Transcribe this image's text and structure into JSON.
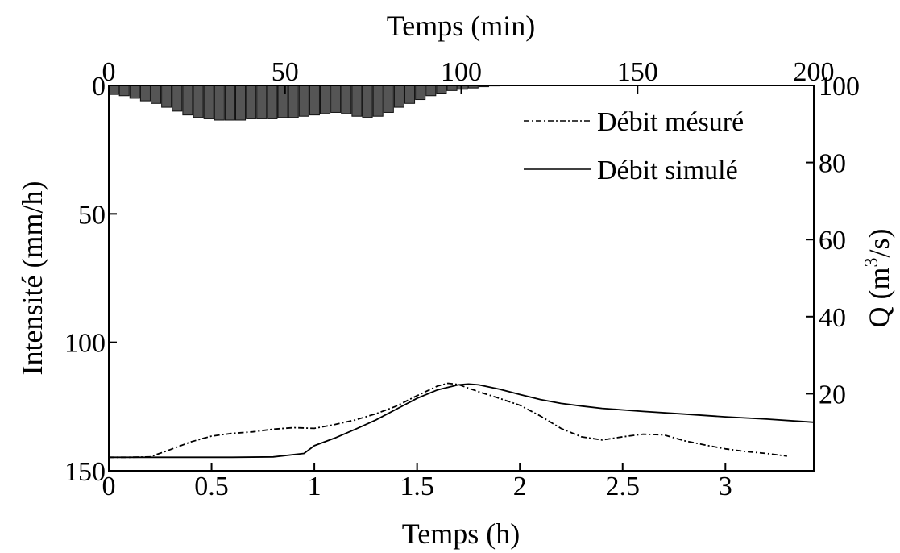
{
  "chart_data": {
    "type": "line",
    "title": "",
    "top_axis": {
      "label": "Temps (min)",
      "ticks": [
        "0",
        "50",
        "100",
        "150",
        "200"
      ],
      "tick_values": [
        0,
        50,
        100,
        150,
        200
      ],
      "range": [
        0,
        200
      ]
    },
    "bottom_axis": {
      "label": "Temps (h)",
      "ticks": [
        "0",
        "0.5",
        "1",
        "1.5",
        "2",
        "2.5",
        "3"
      ],
      "tick_values": [
        0,
        0.5,
        1,
        1.5,
        2,
        2.5,
        3
      ],
      "range": [
        0,
        3.43
      ]
    },
    "left_axis": {
      "label": "Intensité (mm/h)",
      "ticks": [
        "0",
        "50",
        "100",
        "150"
      ],
      "tick_values": [
        0,
        50,
        100,
        150
      ],
      "range": [
        0,
        150
      ],
      "inverted": true
    },
    "right_axis": {
      "label_prefix": "Q (m",
      "label_sup": "3",
      "label_suffix": "/s)",
      "ticks": [
        "100",
        "80",
        "60",
        "40",
        "20"
      ],
      "tick_values": [
        100,
        80,
        60,
        40,
        20
      ],
      "range": [
        0,
        100
      ]
    },
    "rainfall": {
      "name": "",
      "x_min": [
        1.5,
        4.5,
        7.5,
        10.5,
        13.5,
        16.5,
        19.5,
        22.5,
        25.5,
        28.5,
        31.5,
        34.5,
        37.5,
        40.5,
        43.5,
        46.5,
        49.5,
        52.5,
        55.5,
        58.5,
        61.5,
        64.5,
        67.5,
        70.5,
        73.5,
        76.5,
        79.5,
        82.5,
        85.5,
        88.5,
        91.5,
        94.5,
        97.5,
        100.5,
        103.5,
        106.5,
        109.5
      ],
      "intensity_mm_h": [
        3.5,
        4.0,
        5.0,
        6.0,
        7.0,
        8.5,
        10.0,
        11.5,
        12.5,
        13.0,
        13.5,
        13.5,
        13.5,
        13.0,
        13.0,
        13.0,
        12.5,
        12.5,
        12.0,
        11.5,
        11.0,
        10.5,
        11.0,
        12.0,
        12.5,
        12.0,
        10.5,
        8.5,
        7.0,
        5.5,
        4.0,
        3.0,
        2.0,
        1.5,
        1.0,
        0.5,
        0.2
      ]
    },
    "series": [
      {
        "name": "Débit mésuré",
        "style": "dash-dot",
        "x_h": [
          0,
          0.1,
          0.2,
          0.3,
          0.4,
          0.5,
          0.6,
          0.7,
          0.8,
          0.9,
          1.0,
          1.1,
          1.2,
          1.3,
          1.4,
          1.5,
          1.6,
          1.65,
          1.7,
          1.8,
          1.9,
          2.0,
          2.1,
          2.2,
          2.3,
          2.4,
          2.5,
          2.6,
          2.7,
          2.8,
          2.9,
          3.0,
          3.1,
          3.2,
          3.3
        ],
        "q_m3_s": [
          3.5,
          3.5,
          3.6,
          5.5,
          7.5,
          9.0,
          9.7,
          10.1,
          10.8,
          11.2,
          11.0,
          12.0,
          13.2,
          14.8,
          16.8,
          19.5,
          22.0,
          22.7,
          22.4,
          20.5,
          18.8,
          17.0,
          14.2,
          11.0,
          8.8,
          8.0,
          8.8,
          9.5,
          9.3,
          7.8,
          6.7,
          5.7,
          5.0,
          4.5,
          3.8
        ]
      },
      {
        "name": "Débit simulé",
        "style": "solid",
        "x_h": [
          0,
          0.2,
          0.4,
          0.6,
          0.8,
          0.95,
          1.0,
          1.1,
          1.2,
          1.3,
          1.4,
          1.5,
          1.6,
          1.7,
          1.75,
          1.8,
          1.9,
          2.0,
          2.1,
          2.2,
          2.3,
          2.4,
          2.5,
          2.6,
          2.8,
          3.0,
          3.2,
          3.43
        ],
        "q_m3_s": [
          3.5,
          3.5,
          3.5,
          3.5,
          3.6,
          4.5,
          6.5,
          8.5,
          10.8,
          13.2,
          16.0,
          18.8,
          21.0,
          22.3,
          22.5,
          22.3,
          21.2,
          19.8,
          18.5,
          17.5,
          16.8,
          16.2,
          15.8,
          15.4,
          14.7,
          14.0,
          13.4,
          12.6
        ]
      }
    ],
    "legend_position": "top-right",
    "grid": false
  }
}
